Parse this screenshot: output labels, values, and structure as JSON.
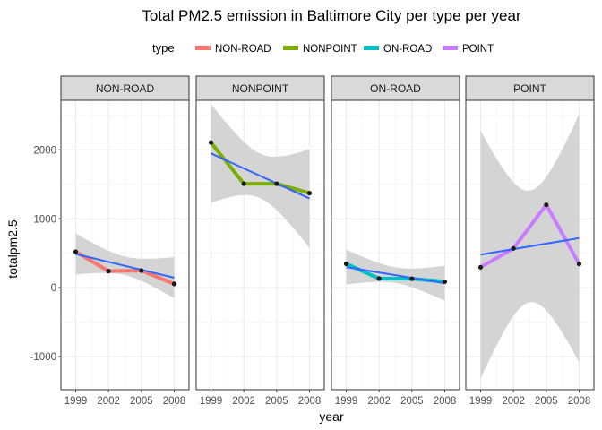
{
  "chart_data": {
    "type": "line",
    "title": "Total PM2.5 emission in Baltimore City per type per year",
    "xlabel": "year",
    "ylabel": "totalpm2.5",
    "x": [
      1999,
      2002,
      2005,
      2008
    ],
    "x_ticks": [
      "1999",
      "2002",
      "2005",
      "2008"
    ],
    "ylim": [
      -1480,
      2720
    ],
    "y_ticks": [
      -1000,
      0,
      1000,
      2000
    ],
    "y_tick_labels": [
      "-1000",
      "0",
      "1000",
      "2000"
    ],
    "grid": true,
    "legend": {
      "title": "type",
      "position": "top"
    },
    "series": [
      {
        "name": "NON-ROAD",
        "color": "#F8766D",
        "values": [
          522,
          241,
          249,
          56
        ],
        "fit": [
          490,
          145
        ],
        "band_upper": [
          760,
          375
        ],
        "band_lower": [
          185,
          -245
        ]
      },
      {
        "name": "NONPOINT",
        "color": "#7CAE00",
        "values": [
          2108,
          1510,
          1510,
          1373
        ],
        "fit": [
          1950,
          1295
        ],
        "band_upper": [
          2680,
          2020
        ],
        "band_lower": [
          1240,
          590
        ]
      },
      {
        "name": "ON-ROAD",
        "color": "#00BFC4",
        "values": [
          347,
          134,
          131,
          88
        ],
        "fit": [
          300,
          65
        ],
        "band_upper": [
          545,
          305
        ],
        "band_lower": [
          40,
          -200
        ]
      },
      {
        "name": "POINT",
        "color": "#C77CFF",
        "values": [
          297,
          570,
          1203,
          345
        ],
        "fit": [
          480,
          720
        ],
        "band_upper": [
          2290,
          2530
        ],
        "band_lower": [
          -1300,
          -1080
        ]
      }
    ],
    "fit_color": "#3366FF",
    "band_color": "#D4D4D4",
    "point_color": "#1a1a1a"
  }
}
